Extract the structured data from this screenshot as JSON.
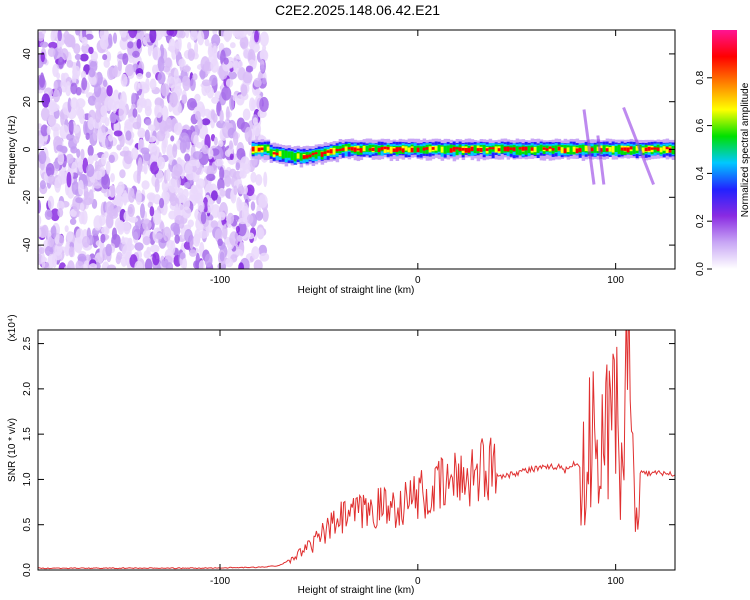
{
  "title": "C2E2.2025.148.06.42.E21",
  "chart_data": [
    {
      "type": "heatmap",
      "title": "C2E2.2025.148.06.42.E21",
      "xlabel": "Height of straight line (km)",
      "ylabel": "Frequency (Hz)",
      "xlim": [
        -192,
        130
      ],
      "ylim": [
        -50,
        50
      ],
      "x_ticks": [
        -100,
        0,
        100
      ],
      "x_tick_labels": [
        "-100",
        "0",
        "100"
      ],
      "y_ticks": [
        -40,
        -20,
        0,
        20,
        40
      ],
      "y_tick_labels": [
        "-40",
        "-20",
        "0",
        "20",
        "40"
      ],
      "colorbar": {
        "label": "Normalized spectral amplitude",
        "range": [
          0.0,
          1.0
        ],
        "ticks": [
          0.0,
          0.2,
          0.4,
          0.6,
          0.8
        ],
        "tick_labels": [
          "0.0",
          "0.2",
          "0.4",
          "0.6",
          "0.8"
        ],
        "colors": [
          "#ffffff",
          "#c8a6f5",
          "#8a2be2",
          "#2222ff",
          "#00c8ff",
          "#00e000",
          "#ffff00",
          "#ff8000",
          "#ff0000",
          "#ff1493"
        ]
      },
      "regions": [
        {
          "description": "broadband noise",
          "x_range": [
            -192,
            -77
          ],
          "freq_range": [
            -50,
            50
          ],
          "amplitude": 0.2
        },
        {
          "description": "narrow band signal",
          "x_range": [
            -84,
            130
          ],
          "freq_center": 0,
          "amplitude": 0.9
        }
      ],
      "grid": false
    },
    {
      "type": "line",
      "xlabel": "Height of straight line (km)",
      "ylabel": "SNR (10 * v/v)",
      "y_multiplier": "(x10⁴)",
      "xlim": [
        -192,
        130
      ],
      "ylim": [
        0,
        2.65
      ],
      "x_ticks": [
        -100,
        0,
        100
      ],
      "x_tick_labels": [
        "-100",
        "0",
        "100"
      ],
      "y_ticks": [
        0,
        0.5,
        1.0,
        1.5,
        2.0,
        2.5
      ],
      "y_tick_labels": [
        "0.0",
        "0.5",
        "1.0",
        "1.5",
        "2.0",
        "2.5"
      ],
      "series": [
        {
          "color": "#e03030",
          "x": [
            -192,
            -150,
            -110,
            -80,
            -70,
            -62,
            -55,
            -50,
            -45,
            -40,
            -35,
            -30,
            -25,
            -20,
            -15,
            -10,
            -5,
            0,
            5,
            10,
            15,
            20,
            25,
            30,
            35,
            40,
            45,
            50,
            55,
            60,
            65,
            70,
            75,
            80,
            85,
            88,
            92,
            95,
            98,
            100,
            103,
            106,
            110,
            113,
            120,
            130
          ],
          "values": [
            0.02,
            0.02,
            0.02,
            0.03,
            0.05,
            0.15,
            0.25,
            0.35,
            0.45,
            0.55,
            0.6,
            0.62,
            0.65,
            0.7,
            0.68,
            0.72,
            0.75,
            0.85,
            0.78,
            0.9,
            0.95,
            1.0,
            1.05,
            1.1,
            1.15,
            1.05,
            1.05,
            1.08,
            1.1,
            1.12,
            1.12,
            1.15,
            1.1,
            1.2,
            1.0,
            1.6,
            0.8,
            2.0,
            1.2,
            2.6,
            1.0,
            2.5,
            1.0,
            1.07,
            1.07,
            1.05
          ]
        }
      ],
      "grid": false
    }
  ]
}
